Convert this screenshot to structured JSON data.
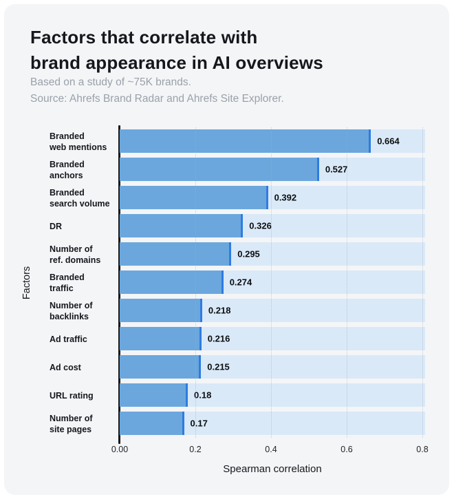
{
  "header": {
    "title_line1": "Factors that correlate with",
    "title_line2": "brand appearance in AI overviews",
    "subtitle_study": "Based on a study of ~75K brands.",
    "subtitle_source": "Source: Ahrefs Brand Radar and Ahrefs Site Explorer."
  },
  "chart_data": {
    "type": "bar",
    "orientation": "horizontal",
    "title": "Factors that correlate with brand appearance in AI overviews",
    "categories": [
      "Branded web mentions",
      "Branded anchors",
      "Branded search volume",
      "DR",
      "Number of ref. domains",
      "Branded traffic",
      "Number of backlinks",
      "Ad traffic",
      "Ad cost",
      "URL rating",
      "Number of site pages"
    ],
    "category_lines": [
      [
        "Branded",
        "web mentions"
      ],
      [
        "Branded",
        "anchors"
      ],
      [
        "Branded",
        "search volume"
      ],
      [
        "DR"
      ],
      [
        "Number of",
        "ref. domains"
      ],
      [
        "Branded",
        "traffic"
      ],
      [
        "Number of",
        "backlinks"
      ],
      [
        "Ad traffic"
      ],
      [
        "Ad cost"
      ],
      [
        "URL rating"
      ],
      [
        "Number of",
        "site pages"
      ]
    ],
    "values": [
      0.664,
      0.527,
      0.392,
      0.326,
      0.295,
      0.274,
      0.218,
      0.216,
      0.215,
      0.18,
      0.17
    ],
    "value_labels": [
      "0.664",
      "0.527",
      "0.392",
      "0.326",
      "0.295",
      "0.274",
      "0.218",
      "0.216",
      "0.215",
      "0.18",
      "0.17"
    ],
    "xlabel": "Spearman correlation",
    "ylabel": "Factors",
    "xlim": [
      0,
      0.8
    ],
    "x_ticks": [
      "0.00",
      "0.2",
      "0.4",
      "0.6",
      "0.8"
    ],
    "x_tick_values": [
      0,
      0.2,
      0.4,
      0.6,
      0.8
    ],
    "x_grid": [
      0.2,
      0.4,
      0.6,
      0.8
    ],
    "grid": "vertical-dotted",
    "legend": "none"
  },
  "colors": {
    "bar_fill": "#6ba7dd",
    "bar_cap": "#2e7ce1",
    "bar_track": "#dae9f8",
    "card_background": "#f4f5f7",
    "page_background": "#ffffff",
    "title_text": "#15171c",
    "subtitle_text": "#9aa1a9",
    "gridline": "#9fadbc"
  }
}
